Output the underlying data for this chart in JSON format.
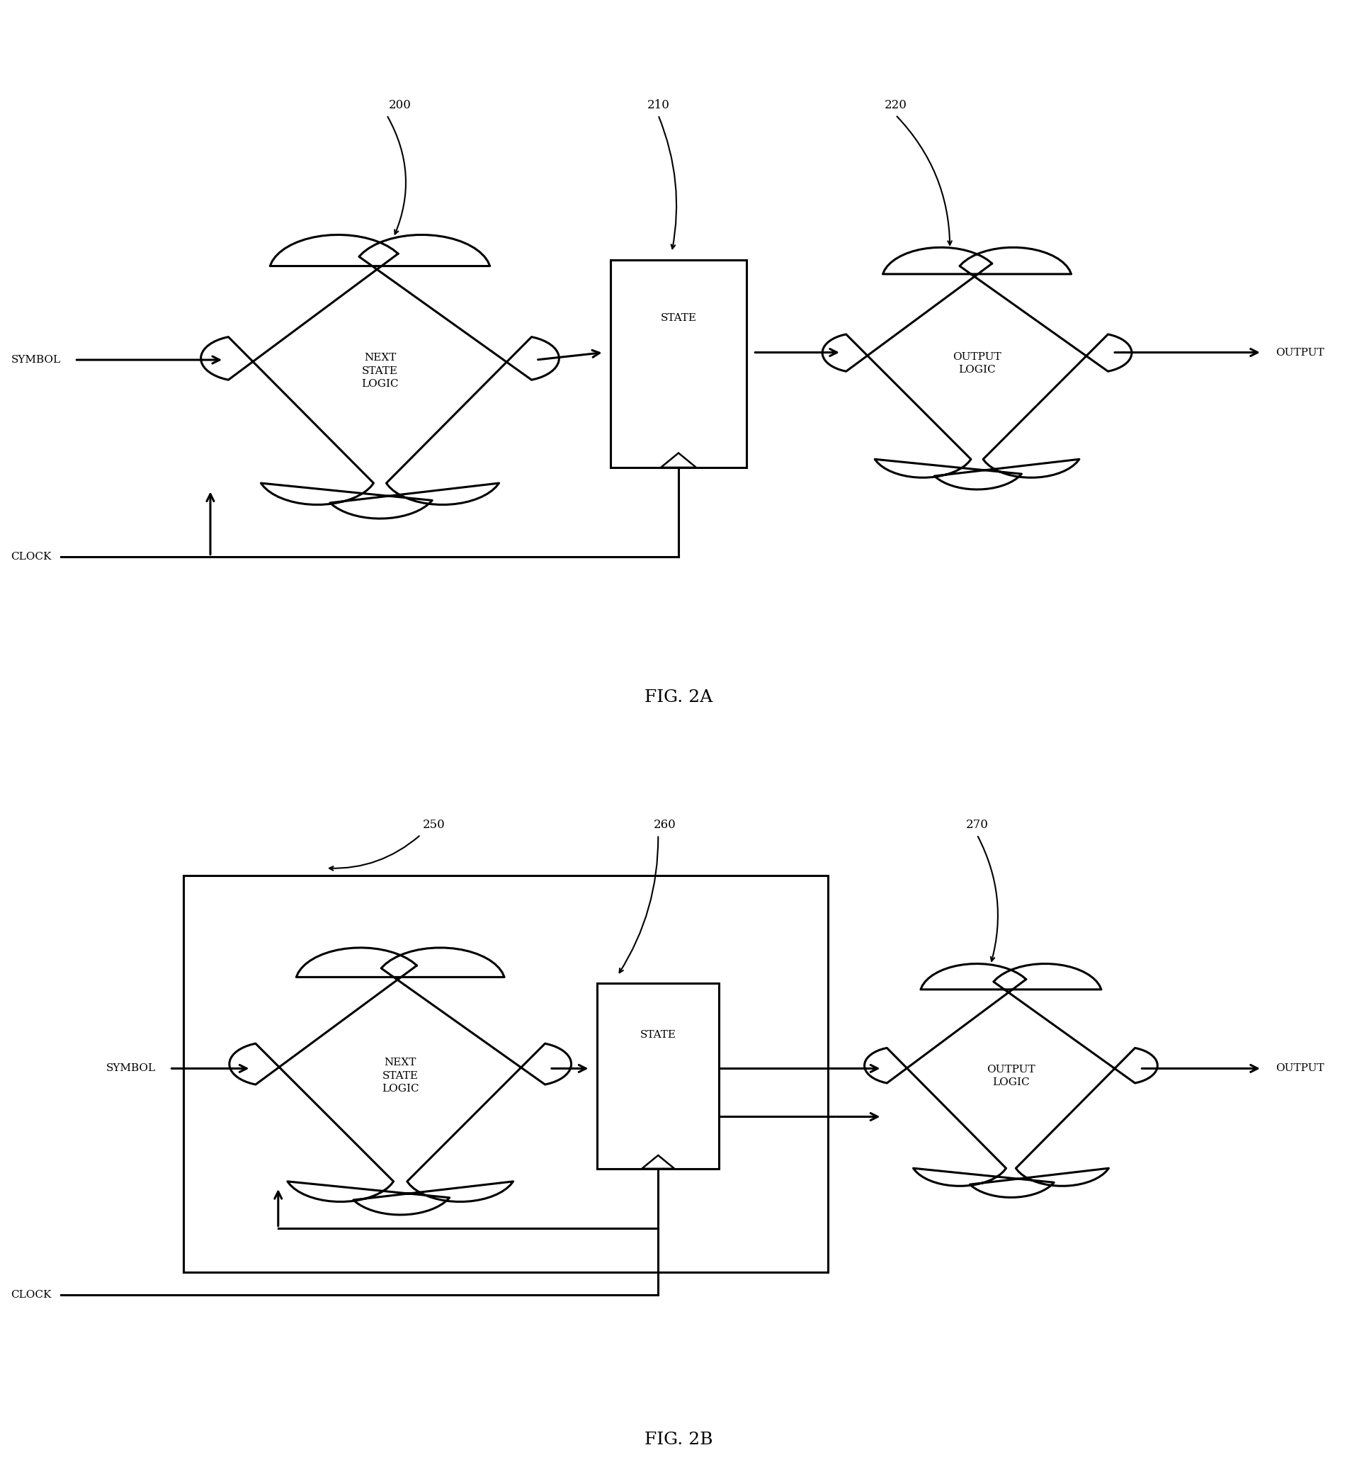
{
  "bg_color": "#ffffff",
  "fig_width": 19.16,
  "fig_height": 20.95,
  "fig2a_caption": "FIG. 2A",
  "fig2b_caption": "FIG. 2B",
  "label_200": "200",
  "label_210": "210",
  "label_220": "220",
  "label_250": "250",
  "label_260": "260",
  "label_270": "270",
  "text_next_state_logic": "NEXT\nSTATE\nLOGIC",
  "text_state": "STATE",
  "text_output_logic": "OUTPUT\nLOGIC",
  "text_symbol": "SYMBOL",
  "text_clock": "CLOCK",
  "text_output": "OUTPUT",
  "line_color": "#000000",
  "lw_main": 2.2,
  "lw_thin": 1.5
}
